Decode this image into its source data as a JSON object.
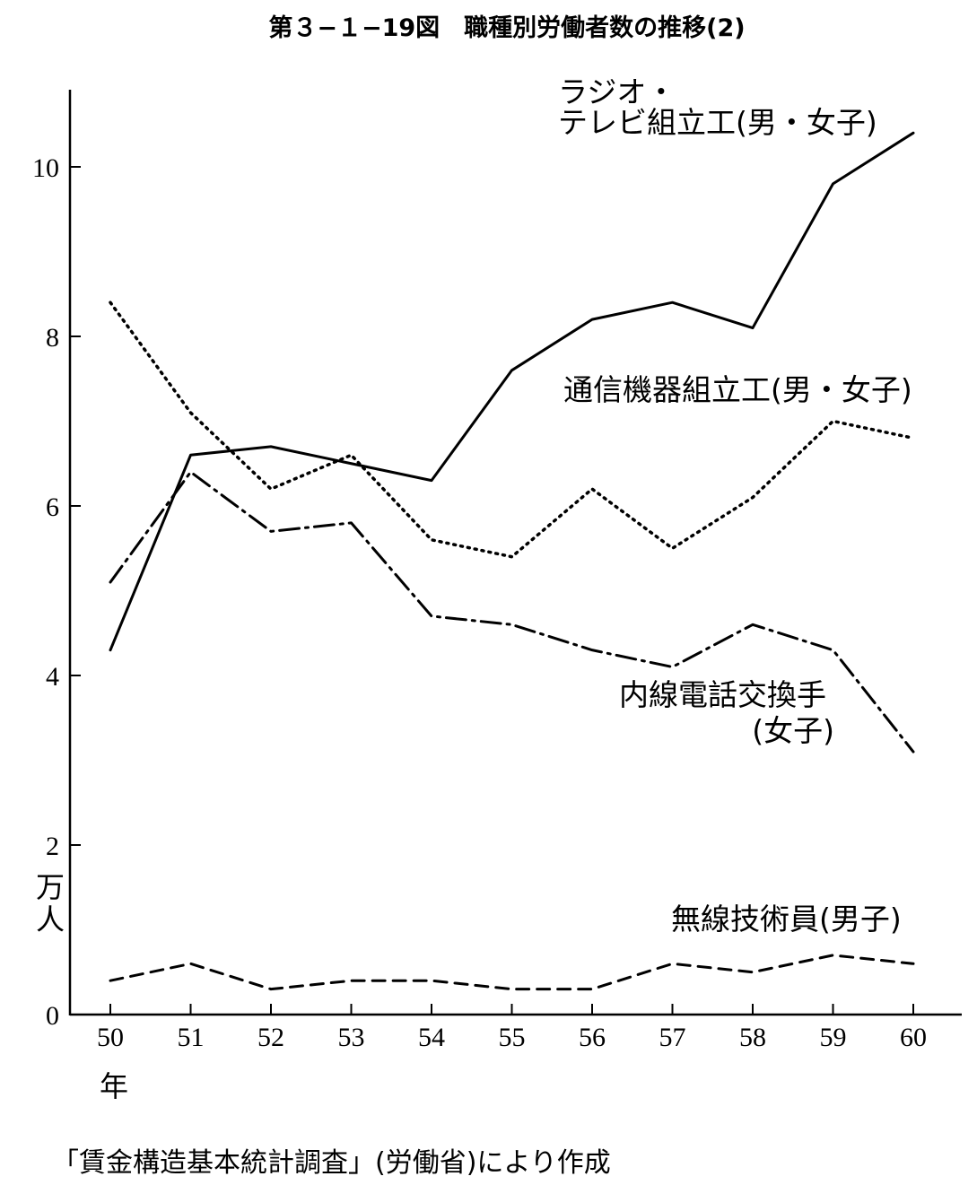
{
  "chart_data": {
    "type": "line",
    "title": "第３−１−19図　職種別労働者数の推移(2)",
    "x": [
      "50",
      "51",
      "52",
      "53",
      "54",
      "55",
      "56",
      "57",
      "58",
      "59",
      "60"
    ],
    "xlabel": "年",
    "ylabel": "万人",
    "ylim": [
      0,
      11
    ],
    "yticks": [
      "0",
      "2",
      "4",
      "6",
      "8",
      "10"
    ],
    "grid": false,
    "series": [
      {
        "name_lines": [
          "ラジオ・",
          "テレビ組立工(男・女子)"
        ],
        "style": "solid",
        "values": [
          4.3,
          6.6,
          6.7,
          6.5,
          6.3,
          7.6,
          8.2,
          8.4,
          8.1,
          9.8,
          10.4
        ]
      },
      {
        "name_lines": [
          "通信機器組立工(男・女子)"
        ],
        "style": "dotted",
        "values": [
          8.4,
          7.1,
          6.2,
          6.6,
          5.6,
          5.4,
          6.2,
          5.5,
          6.1,
          7.0,
          6.8
        ]
      },
      {
        "name_lines": [
          "内線電話交換手",
          "(女子)"
        ],
        "style": "dashdot",
        "values": [
          5.1,
          6.4,
          5.7,
          5.8,
          4.7,
          4.6,
          4.3,
          4.1,
          4.6,
          4.3,
          3.1
        ]
      },
      {
        "name_lines": [
          "無線技術員(男子)"
        ],
        "style": "dashed",
        "values": [
          0.4,
          0.6,
          0.3,
          0.4,
          0.4,
          0.3,
          0.3,
          0.6,
          0.5,
          0.7,
          0.6
        ]
      }
    ],
    "source": "「賃金構造基本統計調査」(労働省)により作成"
  },
  "colors": {
    "line": "#000000",
    "background": "#ffffff"
  }
}
